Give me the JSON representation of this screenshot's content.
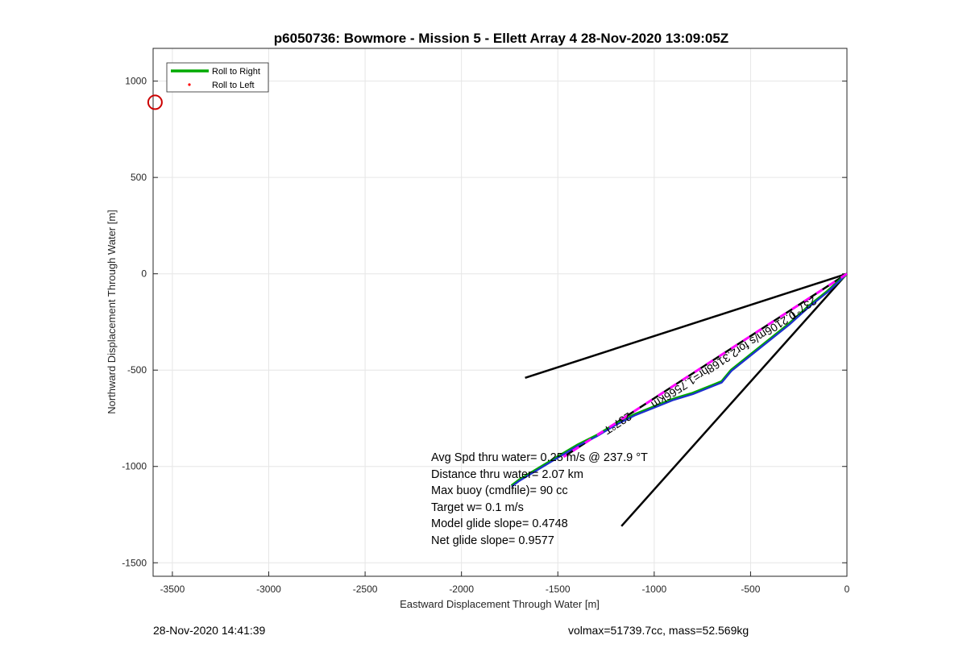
{
  "chart_data": {
    "type": "line",
    "title": "p6050736: Bowmore - Mission 5 - Ellett Array 4 28-Nov-2020 13:09:05Z",
    "xlabel": "Eastward Displacement Through Water [m]",
    "ylabel": "Northward Displacement Through Water [m]",
    "xlim": [
      -3600,
      0
    ],
    "ylim": [
      -1570,
      1170
    ],
    "xticks": [
      -3500,
      -3000,
      -2500,
      -2000,
      -1500,
      -1000,
      -500,
      0
    ],
    "yticks": [
      -1500,
      -1000,
      -500,
      0,
      500,
      1000
    ],
    "grid": true,
    "legend_placement": "top-left",
    "legend": [
      "Roll to Right",
      "Roll to Left"
    ],
    "series": [
      {
        "name": "Roll to Right",
        "color": "#00aa00",
        "x": [
          0,
          -100,
          -200,
          -300,
          -400,
          -500,
          -600,
          -650,
          -700,
          -800,
          -900,
          -1000,
          -1100,
          -1200,
          -1300,
          -1400,
          -1500,
          -1600,
          -1700,
          -1740
        ],
        "y": [
          0,
          -90,
          -170,
          -260,
          -340,
          -420,
          -500,
          -560,
          -580,
          -620,
          -650,
          -690,
          -730,
          -780,
          -840,
          -890,
          -950,
          -1010,
          -1070,
          -1100
        ]
      },
      {
        "name": "Roll to Left",
        "color": "#ff0000",
        "x": [],
        "y": []
      }
    ],
    "track_blue": {
      "color": "#1f2fd0",
      "x": [
        0,
        -100,
        -200,
        -300,
        -400,
        -500,
        -600,
        -650,
        -700,
        -800,
        -900,
        -1000,
        -1100,
        -1200,
        -1300,
        -1400,
        -1500,
        -1600,
        -1700,
        -1740
      ],
      "y": [
        0,
        -95,
        -175,
        -265,
        -345,
        -425,
        -505,
        -565,
        -585,
        -625,
        -655,
        -695,
        -735,
        -785,
        -845,
        -895,
        -955,
        -1015,
        -1075,
        -1105
      ]
    },
    "magenta_dashed": {
      "color": "#ff00ff",
      "x": [
        0,
        -1470
      ],
      "y": [
        0,
        -950
      ]
    },
    "black_lines": [
      {
        "x": [
          0,
          -1670
        ],
        "y": [
          0,
          -540
        ]
      },
      {
        "x": [
          0,
          -1170
        ],
        "y": [
          0,
          -1310
        ]
      },
      {
        "x": [
          0,
          -1470
        ],
        "y": [
          0,
          -950
        ]
      }
    ],
    "line_labels": [
      {
        "text": "237°T",
        "x": -1200,
        "y": -760
      },
      {
        "text": "237°T",
        "x": -240,
        "y": -160
      },
      {
        "text": "0.2106m/s for2.3168hr=1.7566km",
        "x": -650,
        "y": -430
      }
    ],
    "marker_circle": {
      "x": -3590,
      "y": 890,
      "color": "#cc0000"
    },
    "stats": [
      "Avg Spd thru water=  0.25 m/s @ 237.9 °T",
      "Distance thru water=  2.07 km",
      "Max buoy (cmdfile)= 90 cc",
      "Target w= 0.1 m/s",
      "Model glide slope= 0.4748",
      "Net glide slope= 0.9577"
    ]
  },
  "footer": {
    "left": "28-Nov-2020 14:41:39",
    "right": "volmax=51739.7cc, mass=52.569kg"
  }
}
